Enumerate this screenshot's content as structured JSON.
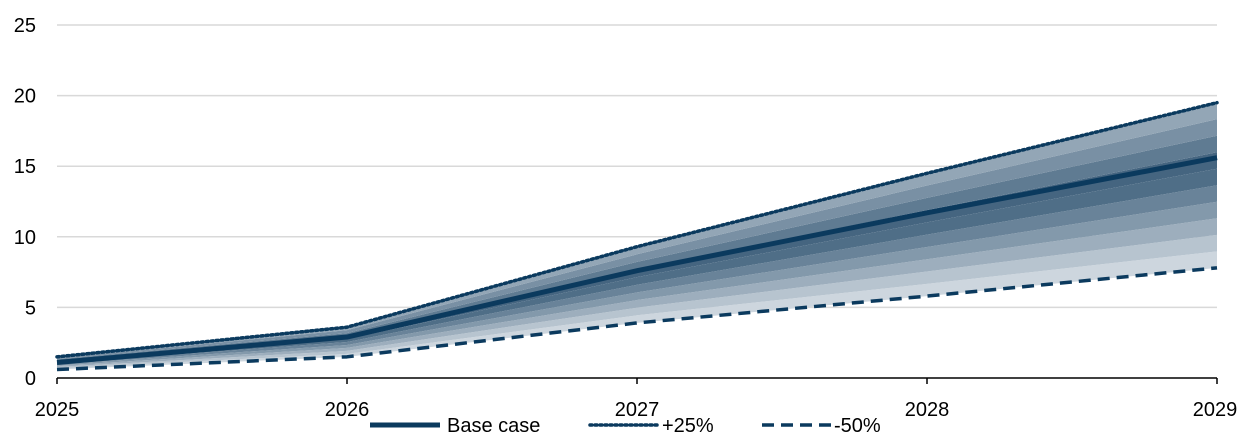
{
  "chart_data": {
    "type": "area",
    "title": "",
    "xlabel": "",
    "ylabel": "",
    "x": [
      "2025",
      "2026",
      "2027",
      "2028",
      "2029"
    ],
    "xlim": [
      2025,
      2029
    ],
    "ylim": [
      0,
      25
    ],
    "yticks": [
      "0",
      "5",
      "10",
      "15",
      "20",
      "25"
    ],
    "grid": "horizontal",
    "legend_position": "bottom",
    "series": [
      {
        "name": "Base case",
        "style": "solid",
        "values": [
          1.1,
          2.9,
          7.6,
          11.7,
          15.6
        ]
      },
      {
        "name": "+25%",
        "style": "dotted",
        "values": [
          1.5,
          3.6,
          9.3,
          14.5,
          19.5
        ]
      },
      {
        "name": "-50%",
        "style": "dashed",
        "values": [
          0.6,
          1.5,
          3.9,
          5.8,
          7.8
        ]
      }
    ],
    "fan_band": {
      "lower": "-50%",
      "upper": "+25%",
      "bands": 10
    },
    "colors": {
      "line": "#0b3a5e",
      "fan_dark": "#3d5f7b",
      "fan_light": "#cdd6de",
      "grid": "#d9d9d9",
      "axis": "#000000"
    }
  }
}
